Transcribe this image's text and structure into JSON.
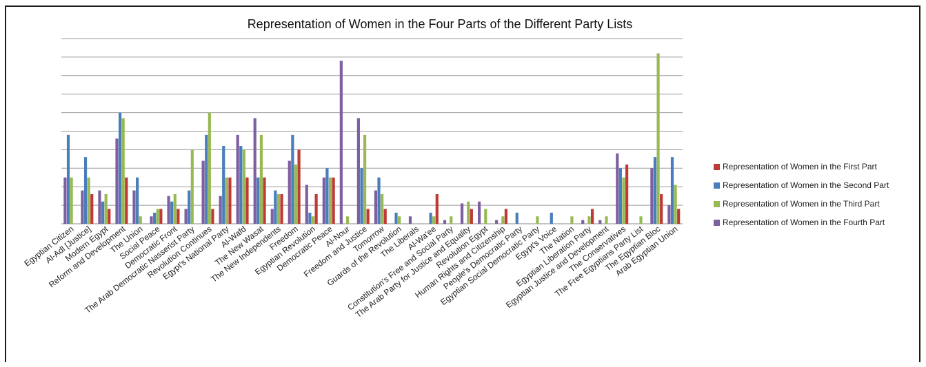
{
  "chart_data": {
    "type": "bar",
    "title": "Representation of Women in the Four Parts of the Different Party Lists",
    "xlabel": "",
    "ylabel": "",
    "ylim": [
      0,
      10
    ],
    "grid": true,
    "legend_position": "right",
    "categories": [
      "Egyptian Citizen",
      "Al-Adl [Justice]",
      "Modern Egypt",
      "Reform and Development",
      "The Union",
      "Social Peace",
      "Democratic Front",
      "The Arab Democratic Nasserist Party",
      "Revolution Continues",
      "Egypt's National Party",
      "Al-Wafd",
      "The New Wasat",
      "The New Independents",
      "Freedom",
      "Egyptian Revolution",
      "Democratic Peace",
      "Al-Nour",
      "Freedom and Justice",
      "Tomorrow",
      "Guards of the Revolution",
      "The Liberals",
      "Al-Wa'ee",
      "Constitution's Free and Social Party",
      "The Arab Party for Justice and Equality",
      "Revolution Egypt",
      "Human Rights and Citizenship",
      "People's Democratic Party",
      "Egyptian Social Democratic Party",
      "Egypt's Voice",
      "The Nation",
      "Egyptian Liberation Party",
      "Egyptian Justice and Development",
      "The Conservatives",
      "The Free Egyptians Party List",
      "The Egyptian Bloc",
      "Arab Egyptian Union"
    ],
    "series": [
      {
        "name": "Representation of Women in the First Part",
        "color": "#be3a34",
        "values": [
          0,
          1.6,
          0.8,
          2.5,
          0,
          0.8,
          0.8,
          0,
          0.8,
          2.5,
          2.5,
          2.5,
          1.6,
          4.0,
          1.6,
          2.5,
          0,
          0.8,
          0.8,
          0,
          0,
          1.6,
          0,
          0.8,
          0,
          0.8,
          0,
          0,
          0,
          0,
          0.8,
          0,
          3.2,
          0,
          1.6,
          0.8
        ]
      },
      {
        "name": "Representation of Women in the Second Part",
        "color": "#4a7ebb",
        "values": [
          4.8,
          3.6,
          1.2,
          6.0,
          2.5,
          0.6,
          1.2,
          1.8,
          4.8,
          4.2,
          4.2,
          2.5,
          1.8,
          4.8,
          0.6,
          3.0,
          0,
          3.0,
          2.5,
          0.6,
          0,
          0.6,
          0,
          0,
          0,
          0,
          0.6,
          0,
          0.6,
          0,
          0,
          0,
          3.0,
          0,
          3.6,
          3.6
        ]
      },
      {
        "name": "Representation of Women in the Third Part",
        "color": "#98b954",
        "values": [
          2.5,
          2.5,
          1.6,
          5.7,
          0.4,
          0.8,
          1.6,
          4.0,
          6.0,
          2.5,
          4.0,
          4.8,
          1.6,
          3.2,
          0.4,
          2.5,
          0.4,
          4.8,
          1.6,
          0.4,
          0,
          0.4,
          0.4,
          1.2,
          0.8,
          0.4,
          0,
          0.4,
          0,
          0.4,
          0.4,
          0.4,
          2.5,
          0.4,
          9.2,
          2.1
        ]
      },
      {
        "name": "Representation of Women in the Fourth Part",
        "color": "#7d60a0",
        "values": [
          2.5,
          1.8,
          1.8,
          4.6,
          1.8,
          0.4,
          1.5,
          0.8,
          3.4,
          1.5,
          4.8,
          5.7,
          0.8,
          3.4,
          2.1,
          2.5,
          8.8,
          5.7,
          1.8,
          0,
          0.4,
          0,
          0.2,
          1.1,
          1.2,
          0.2,
          0,
          0,
          0,
          0,
          0.2,
          0.2,
          3.8,
          0,
          3.0,
          1.0
        ]
      }
    ]
  }
}
